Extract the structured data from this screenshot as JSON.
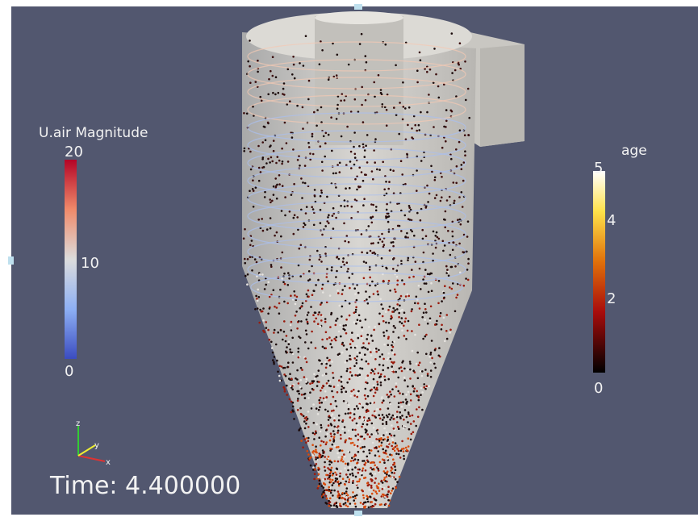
{
  "legend_left": {
    "title": "U.air Magnitude",
    "labels": [
      "20",
      "10",
      "0"
    ]
  },
  "legend_right": {
    "title": "age",
    "labels": [
      "5",
      "4",
      "2",
      "0"
    ]
  },
  "axes": {
    "z": "z",
    "y": "y",
    "x": "x"
  },
  "time": "Time: 4.400000"
}
